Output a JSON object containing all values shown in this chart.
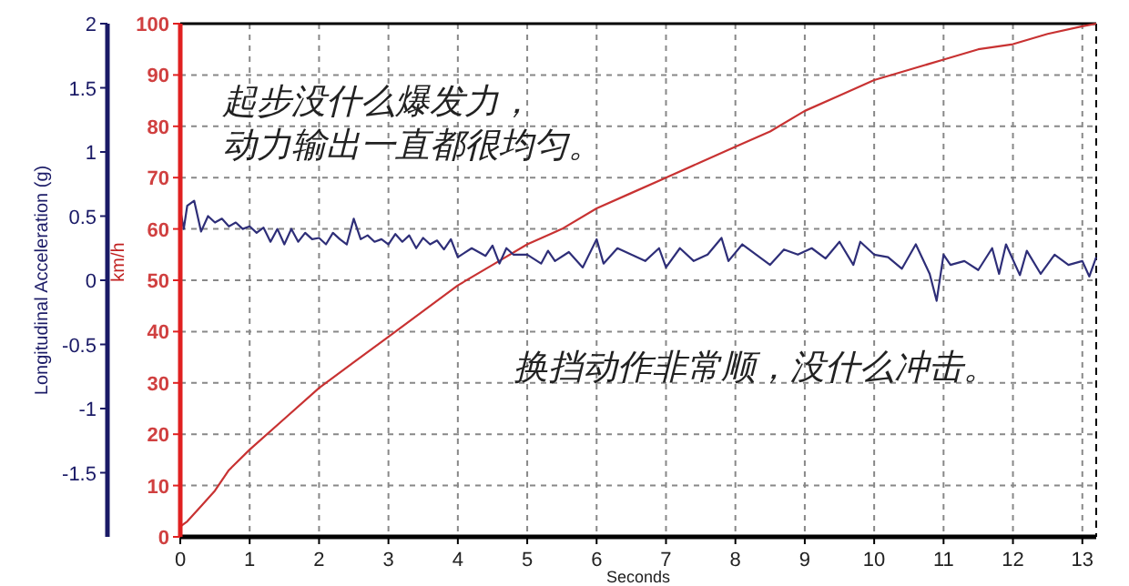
{
  "chart_data": {
    "type": "line",
    "xlabel": "Seconds",
    "ylabel": "km/h",
    "y2label": "Longitudinal Acceleration (g)",
    "xlim": [
      0,
      13.2
    ],
    "xticks": [
      0,
      1,
      2,
      3,
      4,
      5,
      6,
      7,
      8,
      9,
      10,
      11,
      12,
      13
    ],
    "ylim": [
      0,
      100
    ],
    "yticks": [
      0,
      10,
      20,
      30,
      40,
      50,
      60,
      70,
      80,
      90,
      100
    ],
    "y2lim": [
      -2,
      2
    ],
    "y2ticks": [
      2,
      1.5,
      1,
      0.5,
      0,
      -0.5,
      -1,
      -1.5
    ],
    "grid": true,
    "marker": "none",
    "line_style": "solid",
    "series": [
      {
        "color": "#c83232",
        "x": [
          0,
          0.1,
          0.3,
          0.5,
          0.7,
          1,
          1.5,
          2,
          2.5,
          3,
          3.5,
          4,
          4.5,
          5,
          5.5,
          6,
          6.5,
          7,
          7.5,
          8,
          8.5,
          9,
          9.5,
          10,
          10.5,
          11,
          11.5,
          12,
          12.5,
          13,
          13.2
        ],
        "values": [
          2,
          3,
          6,
          9,
          13,
          17,
          23,
          29,
          34,
          39,
          44,
          49,
          53,
          57,
          60,
          64,
          67,
          70,
          73,
          76,
          79,
          83,
          86,
          89,
          91,
          93,
          95,
          96,
          98,
          99.5,
          100
        ]
      },
      {
        "axis": "y2",
        "color": "#2e2e78",
        "x": [
          0,
          0.05,
          0.1,
          0.2,
          0.3,
          0.4,
          0.5,
          0.6,
          0.7,
          0.8,
          0.9,
          1,
          1.1,
          1.2,
          1.3,
          1.4,
          1.5,
          1.6,
          1.7,
          1.8,
          1.9,
          2,
          2.1,
          2.2,
          2.3,
          2.4,
          2.5,
          2.6,
          2.7,
          2.8,
          2.9,
          3,
          3.1,
          3.2,
          3.3,
          3.4,
          3.5,
          3.6,
          3.7,
          3.8,
          3.9,
          4,
          4.2,
          4.4,
          4.5,
          4.6,
          4.7,
          4.8,
          5,
          5.2,
          5.3,
          5.4,
          5.6,
          5.8,
          6,
          6.1,
          6.3,
          6.5,
          6.7,
          6.9,
          7,
          7.2,
          7.4,
          7.6,
          7.8,
          7.9,
          8.1,
          8.3,
          8.5,
          8.7,
          8.9,
          9.1,
          9.3,
          9.5,
          9.7,
          9.8,
          10,
          10.2,
          10.4,
          10.6,
          10.8,
          10.9,
          11,
          11.1,
          11.3,
          11.5,
          11.7,
          11.8,
          11.9,
          12.1,
          12.2,
          12.4,
          12.6,
          12.8,
          13,
          13.1,
          13.2
        ],
        "values": [
          0.55,
          0.4,
          0.58,
          0.62,
          0.38,
          0.5,
          0.45,
          0.48,
          0.42,
          0.45,
          0.4,
          0.42,
          0.37,
          0.41,
          0.3,
          0.4,
          0.28,
          0.4,
          0.3,
          0.37,
          0.32,
          0.33,
          0.28,
          0.37,
          0.32,
          0.28,
          0.48,
          0.32,
          0.35,
          0.3,
          0.32,
          0.28,
          0.36,
          0.3,
          0.35,
          0.25,
          0.33,
          0.28,
          0.31,
          0.24,
          0.32,
          0.18,
          0.25,
          0.19,
          0.27,
          0.13,
          0.25,
          0.2,
          0.2,
          0.13,
          0.23,
          0.15,
          0.22,
          0.1,
          0.32,
          0.13,
          0.25,
          0.2,
          0.15,
          0.25,
          0.1,
          0.25,
          0.15,
          0.2,
          0.33,
          0.15,
          0.28,
          0.2,
          0.12,
          0.24,
          0.2,
          0.25,
          0.17,
          0.3,
          0.12,
          0.3,
          0.2,
          0.18,
          0.09,
          0.28,
          0.05,
          -0.16,
          0.2,
          0.12,
          0.15,
          0.08,
          0.25,
          0.05,
          0.28,
          0.04,
          0.23,
          0.05,
          0.2,
          0.12,
          0.15,
          0.03,
          0.18
        ]
      }
    ],
    "annotations": [
      "起步没什么爆发力，",
      "动力输出一直都很均匀。",
      "换挡动作非常顺，没什么冲击。"
    ]
  }
}
